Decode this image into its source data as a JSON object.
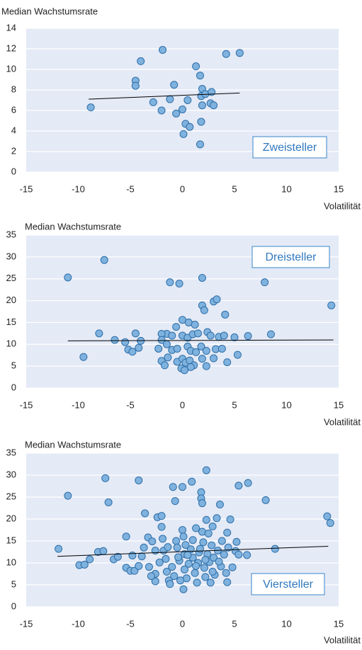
{
  "chart_data": [
    {
      "type": "scatter",
      "y_label": "Median Wachstumsrate",
      "x_label": "Volatilität",
      "annotation": "Zweisteller",
      "color": "#7fb2de",
      "edge_color": "#2e6ea8",
      "grid": true,
      "xlim": [
        -15,
        15
      ],
      "xticks": [
        -15,
        -10,
        -5,
        0,
        5,
        10,
        15
      ],
      "ylim": [
        0,
        14
      ],
      "yticks": [
        0,
        2,
        4,
        6,
        8,
        10,
        12,
        14
      ],
      "x": [
        -8.8,
        -4.0,
        -1.9,
        -4.5,
        -4.5,
        -2.8,
        -2.0,
        -1.2,
        -0.8,
        -0.6,
        0,
        0.5,
        0.3,
        0.7,
        0.1,
        1.3,
        1.7,
        1.9,
        1.8,
        2.2,
        2.8,
        1.9,
        2.7,
        3.0,
        1.8,
        1.7,
        4.2,
        5.5
      ],
      "values": [
        6.3,
        10.8,
        11.9,
        8.9,
        8.4,
        6.8,
        6.0,
        7.1,
        8.5,
        5.7,
        6.1,
        7.0,
        4.7,
        4.4,
        3.7,
        10.3,
        9.4,
        8.1,
        7.4,
        7.6,
        7.8,
        6.5,
        6.7,
        6.5,
        4.9,
        2.7,
        11.5,
        11.6
      ],
      "trend": {
        "x": [
          -9,
          5.5
        ],
        "values": [
          7.1,
          7.7
        ]
      }
    },
    {
      "type": "scatter",
      "y_label": "Median Wachstumsrate",
      "x_label": "Volatilität",
      "annotation": "Dreisteller",
      "color": "#7fb2de",
      "edge_color": "#2e6ea8",
      "grid": true,
      "xlim": [
        -15,
        15
      ],
      "xticks": [
        -15,
        -10,
        -5,
        0,
        5,
        10,
        15
      ],
      "ylim": [
        0,
        35
      ],
      "yticks": [
        0,
        5,
        10,
        15,
        20,
        25,
        30,
        35
      ],
      "x": [
        -11.0,
        -7.5,
        -8,
        -9.5,
        -6.5,
        -5.5,
        -5.2,
        -4.8,
        -4.5,
        -4.2,
        -4,
        -1.2,
        -0.3,
        1.9,
        7.9,
        14.3,
        3,
        3.3,
        1.9,
        2.1,
        4.1,
        0,
        0.6,
        1.2,
        -0.6,
        -1.5,
        -2,
        -1,
        0,
        0.5,
        1,
        1.5,
        2.4,
        2.7,
        3.5,
        4,
        5,
        6.3,
        8.5,
        -2,
        -1.5,
        -2.3,
        -1,
        -0.5,
        0.5,
        0.8,
        1.3,
        1.8,
        2.3,
        3.2,
        3.8,
        -2,
        -1.4,
        -0.5,
        0,
        0.3,
        0.7,
        1.1,
        1.9,
        2.3,
        -0.1,
        0.2,
        0.8,
        3,
        4.3,
        5.3,
        -1.7
      ],
      "values": [
        25.3,
        29.3,
        12.5,
        7.1,
        11,
        10.5,
        8.8,
        8.3,
        12.5,
        9.2,
        10.8,
        24.2,
        23.9,
        25.2,
        24.2,
        18.9,
        19.8,
        20.3,
        18.9,
        17.8,
        16.8,
        15.6,
        15,
        14.5,
        14,
        12.4,
        12.4,
        12,
        12,
        11.5,
        12.3,
        12.5,
        12.8,
        12,
        11.7,
        12,
        11.6,
        11.9,
        12.3,
        11,
        10,
        9,
        8.7,
        9,
        9.5,
        8.5,
        8.2,
        9.5,
        8.5,
        8.9,
        9,
        6.2,
        7,
        6,
        6.7,
        5.8,
        6.3,
        5.2,
        6.7,
        5,
        4.5,
        4.1,
        4.8,
        6.8,
        5.9,
        7.6,
        5.2
      ],
      "trend": {
        "x": [
          -11,
          14.5
        ],
        "values": [
          10.8,
          11.0
        ]
      }
    },
    {
      "type": "scatter",
      "y_label": "Median Wachstumsrate",
      "x_label": "Volatilität",
      "annotation": "Viersteller",
      "color": "#7fb2de",
      "edge_color": "#2e6ea8",
      "grid": true,
      "xlim": [
        -15,
        15
      ],
      "xticks": [
        -15,
        -10,
        -5,
        0,
        5,
        10,
        15
      ],
      "ylim": [
        0,
        35
      ],
      "yticks": [
        0,
        5,
        10,
        15,
        20,
        25,
        30,
        35
      ],
      "x": [
        -11.9,
        -11,
        -9.9,
        -9.4,
        -8.9,
        -8.1,
        -7.6,
        -7.4,
        -7.1,
        -6.6,
        -6.2,
        -5.4,
        -5.4,
        -5,
        -4.6,
        -4.2,
        -4.2,
        -3.9,
        -3.7,
        -3.6,
        -3.3,
        -3.2,
        -2.9,
        -2.6,
        -2.6,
        -2.6,
        -2.4,
        -2.0,
        -2.0,
        -1.9,
        -1.8,
        -1.6,
        -1.5,
        -1.3,
        -1.2,
        -0.9,
        -0.7,
        -0.6,
        -0.5,
        -0.3,
        0,
        0,
        0.1,
        0.2,
        0.2,
        0.1,
        0.4,
        0.6,
        0.8,
        0.9,
        1,
        1,
        1.2,
        1.3,
        1.4,
        1.5,
        1.6,
        1.8,
        1.8,
        1.9,
        1.9,
        2,
        2.1,
        2.2,
        2.3,
        2.3,
        2.4,
        2.5,
        2.6,
        2.7,
        2.8,
        2.9,
        3,
        3.1,
        3.3,
        3.4,
        3.6,
        3.7,
        3.8,
        4,
        4.2,
        4.3,
        4.3,
        4.6,
        4.8,
        5.1,
        5.2,
        5.4,
        5.4,
        6.3,
        6.2,
        8,
        8.9,
        13.9,
        14.2,
        -1,
        -0.8,
        -0.2,
        0.5,
        1.3,
        2.9,
        -2.2,
        -3,
        -1.4,
        0.3,
        1.7,
        -0.4,
        3.5,
        4.4,
        -4.8,
        2.2
      ],
      "values": [
        13.2,
        25.3,
        9.5,
        9.6,
        10.8,
        12.5,
        12.7,
        29.3,
        23.8,
        10.8,
        11.4,
        8.9,
        16,
        8.2,
        8.2,
        28.8,
        9.3,
        11.5,
        13.5,
        21.3,
        15.8,
        9.1,
        14.9,
        7.5,
        5.8,
        12.8,
        20.4,
        20.7,
        18.2,
        15.5,
        12.8,
        10.9,
        8,
        6,
        5.2,
        27.3,
        24.1,
        15,
        13.5,
        10.5,
        27.3,
        17.5,
        16,
        12,
        8.5,
        4,
        6.5,
        9.8,
        13.1,
        28.5,
        15.2,
        11.2,
        7.7,
        17.9,
        5.5,
        10,
        12.4,
        26.1,
        24.7,
        23.6,
        17.1,
        14.7,
        8.9,
        6.8,
        31.1,
        19.8,
        12,
        16.7,
        10.2,
        5.5,
        14,
        18.3,
        11.2,
        7.3,
        20.2,
        12.8,
        23.3,
        9.2,
        15,
        11.9,
        7.7,
        16.9,
        5.6,
        19.9,
        9,
        12.7,
        14.8,
        27.6,
        11.9,
        28.2,
        11.8,
        24.3,
        13.2,
        20.6,
        19.1,
        9.1,
        7,
        6,
        11.8,
        9.3,
        8,
        10.1,
        7,
        13.6,
        14.1,
        13.2,
        11.3,
        10.3,
        13.5,
        11.7,
        10.7
      ],
      "trend": {
        "x": [
          -12,
          14
        ],
        "values": [
          11.5,
          13.8
        ]
      }
    }
  ]
}
